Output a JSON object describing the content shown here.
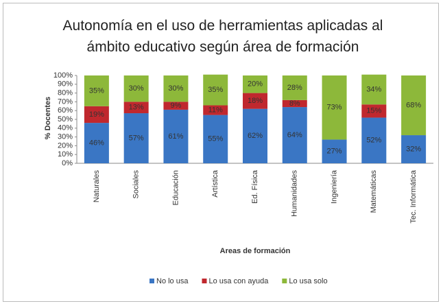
{
  "chart_data": {
    "type": "stacked_bar",
    "title": "Autonomía en el uso de herramientas aplicadas al ámbito educativo según área de formación",
    "y_label": "% Docentes",
    "x_label": "Areas de formación",
    "categories": [
      "Naturales",
      "Sociales",
      "Educación",
      "Artística",
      "Ed. Física",
      "Humanidades",
      "Ingeniería",
      "Matemáticas",
      "Tec. Informática"
    ],
    "series": [
      {
        "name": "No lo usa",
        "color": "#3a76c4",
        "values": [
          46,
          57,
          61,
          55,
          62,
          64,
          27,
          52,
          32
        ],
        "value_labels": [
          "46%",
          "57%",
          "61%",
          "55%",
          "62%",
          "64%",
          "27%",
          "52%",
          "32%"
        ]
      },
      {
        "name": "Lo usa con ayuda",
        "color": "#c0282e",
        "values": [
          19,
          13,
          9,
          11,
          18,
          8,
          0,
          15,
          0
        ],
        "value_labels": [
          "19%",
          "13%",
          "9%",
          "11%",
          "18%",
          "8%",
          null,
          "15%",
          null
        ]
      },
      {
        "name": "Lo usa solo",
        "color": "#8db83a",
        "values": [
          35,
          30,
          30,
          35,
          20,
          28,
          73,
          34,
          68
        ],
        "value_labels": [
          "35%",
          "30%",
          "30%",
          "35%",
          "20%",
          "28%",
          "73%",
          "34%",
          "68%"
        ]
      }
    ],
    "ylim": [
      0,
      100
    ],
    "yticks": [
      {
        "value": 0,
        "label": "0%"
      },
      {
        "value": 10,
        "label": "10%"
      },
      {
        "value": 20,
        "label": "20%"
      },
      {
        "value": 30,
        "label": "30%"
      },
      {
        "value": 40,
        "label": "40%"
      },
      {
        "value": 50,
        "label": "50%"
      },
      {
        "value": 60,
        "label": "60%"
      },
      {
        "value": 70,
        "label": "70%"
      },
      {
        "value": 80,
        "label": "80%"
      },
      {
        "value": 90,
        "label": "90%"
      },
      {
        "value": 100,
        "label": "100%"
      }
    ],
    "legend": "bottom"
  }
}
